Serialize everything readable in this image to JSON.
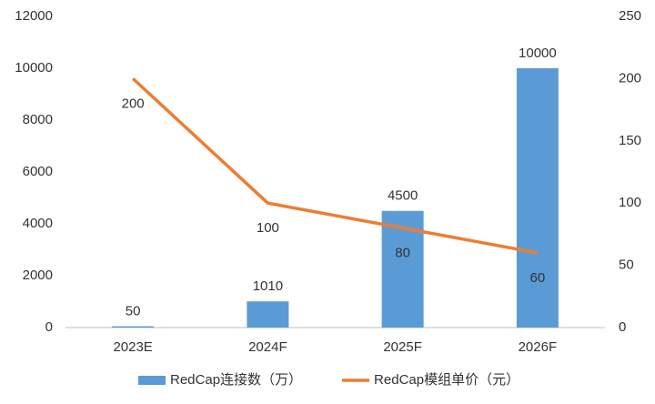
{
  "chart_data": {
    "type": "bar",
    "categories": [
      "2023E",
      "2024F",
      "2025F",
      "2026F"
    ],
    "series": [
      {
        "name": "RedCap连接数（万）",
        "type": "bar",
        "color": "#5b9bd5",
        "values": [
          50,
          1010,
          4500,
          10000
        ]
      },
      {
        "name": "RedCap模组单价（元）",
        "type": "line",
        "axis": "y2",
        "color": "#ed7d31",
        "values": [
          200,
          100,
          80,
          60
        ]
      }
    ],
    "ylim": [
      0,
      12000
    ],
    "yticks": [
      0,
      2000,
      4000,
      6000,
      8000,
      10000,
      12000
    ],
    "y2lim": [
      0,
      250
    ],
    "y2ticks": [
      0,
      50,
      100,
      150,
      200,
      250
    ],
    "grid": false,
    "legend": "bottom"
  }
}
